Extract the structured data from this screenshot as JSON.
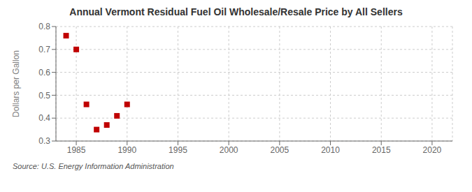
{
  "chart_data": {
    "type": "scatter",
    "title": "Annual Vermont Residual Fuel Oil Wholesale/Resale Price by All Sellers",
    "ylabel": "Dollars per Gallon",
    "annotations": [
      "Source: U.S. Energy Information Administration"
    ],
    "x": [
      1984,
      1985,
      1986,
      1987,
      1988,
      1989,
      1990
    ],
    "values": [
      0.76,
      0.7,
      0.46,
      0.35,
      0.37,
      0.41,
      0.46
    ],
    "color": "#c00000",
    "marker": "square",
    "xlim": [
      1983,
      2022
    ],
    "xticks": [
      1985,
      1990,
      1995,
      2000,
      2005,
      2010,
      2015,
      2020
    ],
    "ylim": [
      0.3,
      0.8
    ],
    "yticks": [
      0.3,
      0.4,
      0.5,
      0.6,
      0.7,
      0.8
    ],
    "grid": true
  }
}
